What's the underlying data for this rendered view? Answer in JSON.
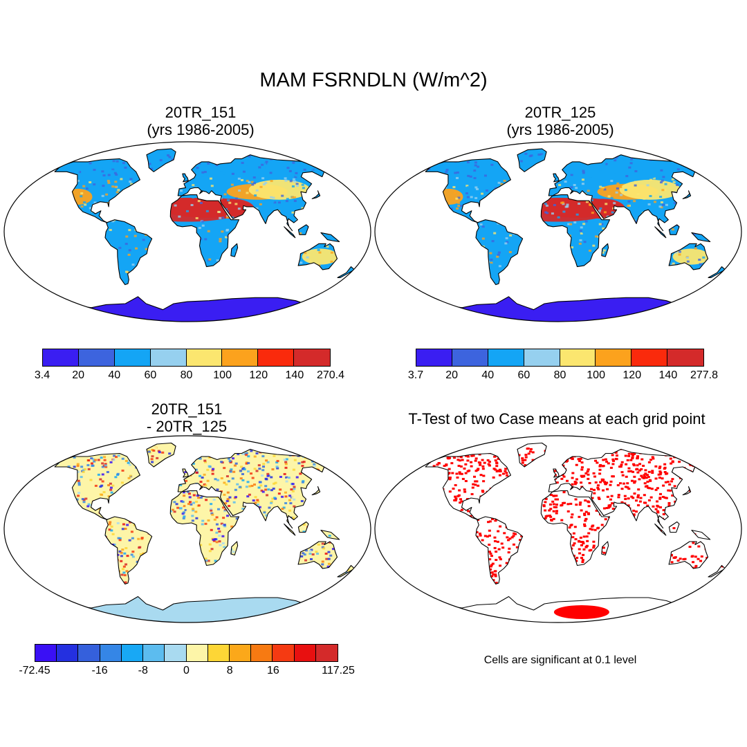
{
  "title": "MAM FSRNDLN (W/m^2)",
  "panels": {
    "top_left": {
      "line1": "20TR_151",
      "line2": "(yrs 1986-2005)"
    },
    "top_right": {
      "line1": "20TR_125",
      "line2": "(yrs 1986-2005)"
    },
    "bottom_left": {
      "line1": "20TR_151",
      "line2": "- 20TR_125"
    },
    "bottom_right": {
      "line1": "T-Test of two Case means at each grid point"
    }
  },
  "colorbar_1": {
    "colors": [
      "#3a1ef2",
      "#3d64de",
      "#14a5f5",
      "#96d0ef",
      "#fbe66f",
      "#fca21d",
      "#fa2a0c",
      "#d42a2a"
    ],
    "labels": [
      "3.4",
      "20",
      "40",
      "60",
      "80",
      "100",
      "120",
      "140",
      "270.4"
    ]
  },
  "colorbar_2": {
    "colors": [
      "#3a1ef2",
      "#3d64de",
      "#14a5f5",
      "#96d0ef",
      "#fbe66f",
      "#fca21d",
      "#fa2a0c",
      "#d42a2a"
    ],
    "labels": [
      "3.7",
      "20",
      "40",
      "60",
      "80",
      "100",
      "120",
      "140",
      "277.8"
    ]
  },
  "colorbar_3": {
    "colors": [
      "#3a10f5",
      "#2430e0",
      "#3560dc",
      "#3586e6",
      "#18a8f5",
      "#5cbcef",
      "#a9daf0",
      "#fdf5a8",
      "#fdd636",
      "#fba81a",
      "#f77a12",
      "#f53a12",
      "#e81010",
      "#d42a2a"
    ],
    "labels": [
      "-72.45",
      "-16",
      "-8",
      "0",
      "8",
      "16",
      "117.25"
    ],
    "label_boundaries": [
      0,
      3,
      5,
      7,
      9,
      11,
      14
    ]
  },
  "note": "Cells are significant at 0.1 level"
}
